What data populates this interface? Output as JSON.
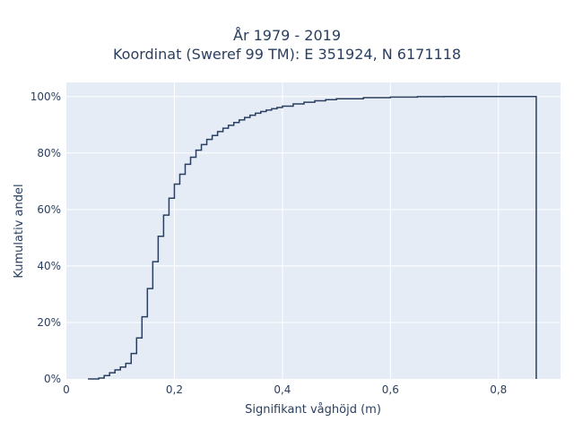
{
  "chart_data": {
    "type": "line",
    "line_shape": "step",
    "title": "År 1979 - 2019",
    "subtitle": "Koordinat (Sweref 99 TM): E 351924, N 6171118",
    "xlabel": "Signifikant våghöjd (m)",
    "ylabel": "Kumulativ andel",
    "xlim": [
      0,
      0.915
    ],
    "ylim": [
      0,
      1.05
    ],
    "xticks": [
      0,
      0.2,
      0.4,
      0.6,
      0.8
    ],
    "xtick_labels": [
      "0",
      "0,2",
      "0,4",
      "0,6",
      "0,8"
    ],
    "yticks": [
      0,
      0.2,
      0.4,
      0.6,
      0.8,
      1.0
    ],
    "ytick_labels": [
      "0%",
      "20%",
      "40%",
      "60%",
      "80%",
      "100%"
    ],
    "grid": true,
    "legend": "none",
    "colors": {
      "line": "#2a3f5f",
      "plot_bg": "#e5ecf6",
      "grid": "#ffffff",
      "text": "#2a3f5f"
    },
    "series": [
      {
        "x": [
          0.04,
          0.06,
          0.07,
          0.08,
          0.09,
          0.1,
          0.11,
          0.12,
          0.13,
          0.14,
          0.15,
          0.16,
          0.17,
          0.18,
          0.19,
          0.2,
          0.21,
          0.22,
          0.23,
          0.24,
          0.25,
          0.26,
          0.27,
          0.28,
          0.29,
          0.3,
          0.31,
          0.32,
          0.33,
          0.34,
          0.35,
          0.36,
          0.37,
          0.38,
          0.39,
          0.4,
          0.42,
          0.44,
          0.46,
          0.48,
          0.5,
          0.55,
          0.6,
          0.65,
          0.7,
          0.8,
          0.87
        ],
        "y": [
          0.0,
          0.003,
          0.012,
          0.022,
          0.032,
          0.042,
          0.055,
          0.09,
          0.145,
          0.22,
          0.32,
          0.415,
          0.505,
          0.58,
          0.64,
          0.69,
          0.725,
          0.76,
          0.785,
          0.81,
          0.83,
          0.848,
          0.862,
          0.876,
          0.888,
          0.898,
          0.908,
          0.917,
          0.926,
          0.934,
          0.941,
          0.947,
          0.952,
          0.957,
          0.961,
          0.966,
          0.974,
          0.98,
          0.985,
          0.989,
          0.992,
          0.996,
          0.998,
          0.9995,
          1.0,
          1.0,
          1.0
        ]
      }
    ]
  }
}
